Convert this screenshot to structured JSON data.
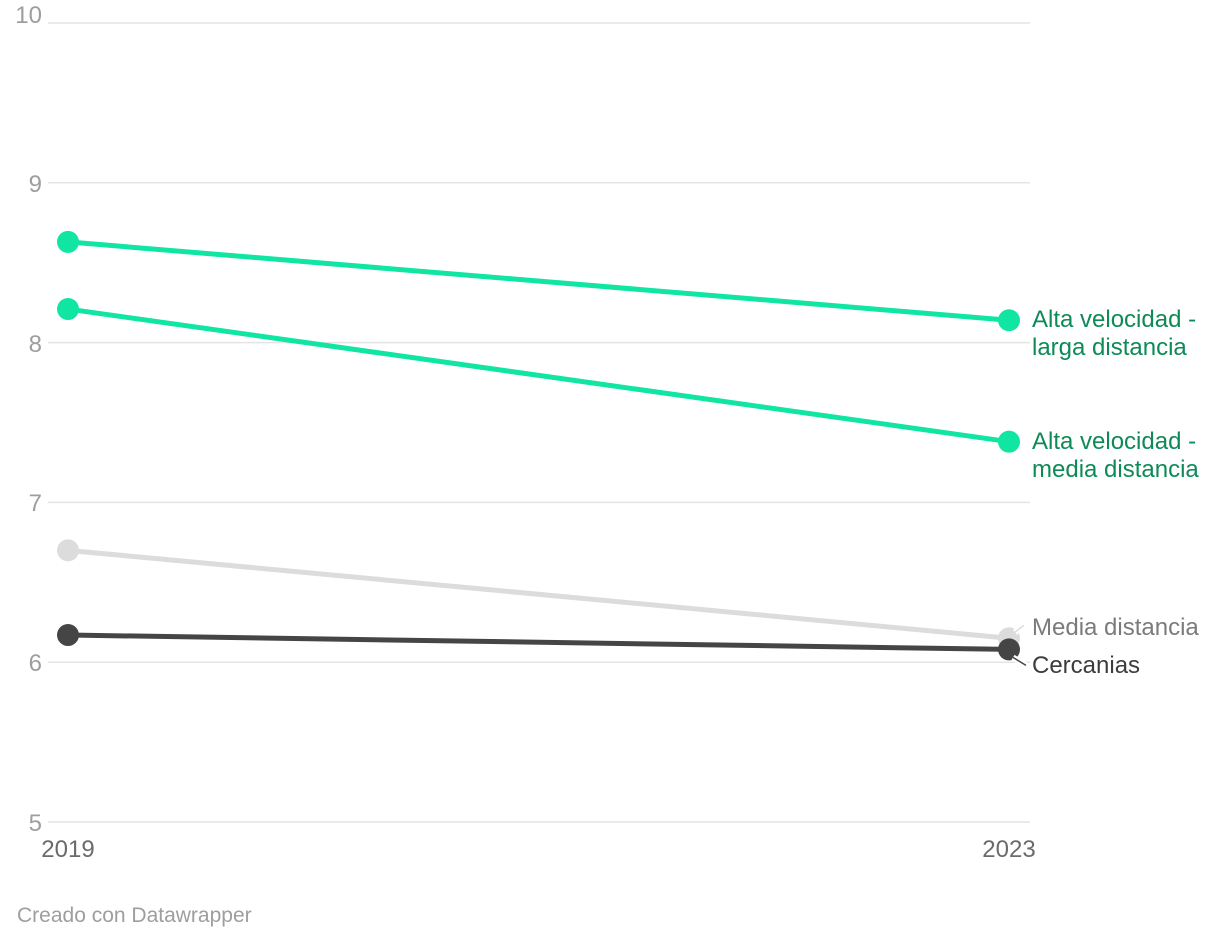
{
  "chart_data": {
    "type": "line",
    "subtype": "slope",
    "x": [
      "2019",
      "2023"
    ],
    "series": [
      {
        "name": "Alta velocidad - larga distancia",
        "values": [
          8.63,
          8.14
        ],
        "color": "#10e5a2",
        "label_color": "#0e8a58",
        "label_lines": [
          "Alta velocidad -",
          "larga distancia"
        ],
        "label_dy": 0
      },
      {
        "name": "Alta velocidad - media distancia",
        "values": [
          8.21,
          7.38
        ],
        "color": "#10e5a2",
        "label_color": "#0e8a58",
        "label_lines": [
          "Alta velocidad -",
          "media distancia"
        ],
        "label_dy": 0
      },
      {
        "name": "Media distancia",
        "values": [
          6.7,
          6.15
        ],
        "color": "#dcdcdc",
        "label_color": "#7b7b7b",
        "label_lines": [
          "Media distancia"
        ],
        "label_dy": -10
      },
      {
        "name": "Cercanias",
        "values": [
          6.17,
          6.08
        ],
        "color": "#454545",
        "label_color": "#3c3c3c",
        "label_lines": [
          "Cercanias"
        ],
        "label_dy": 17
      }
    ],
    "yticks": [
      5,
      6,
      7,
      8,
      9,
      10
    ],
    "ylim": [
      5,
      10
    ],
    "grid": true,
    "legend_position": "right-direct-labels",
    "title": "",
    "xlabel": "",
    "ylabel": ""
  },
  "colors": {
    "background": "#ffffff",
    "gridline": "#e4e4e4",
    "y_tick_text": "#9e9e9e",
    "x_tick_text": "#6b6b6b",
    "credit_text": "#9e9e9e"
  },
  "footer": {
    "credit": "Creado con Datawrapper"
  }
}
